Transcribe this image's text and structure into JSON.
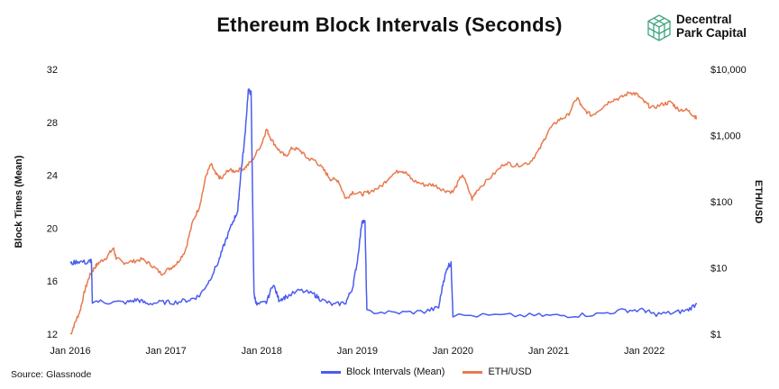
{
  "title": "Ethereum Block Intervals (Seconds)",
  "brand": {
    "line1": "Decentral",
    "line2": "Park Capital",
    "color": "#3fa57f"
  },
  "source": "Source: Glassnode",
  "chart_data": {
    "type": "line",
    "title": "Ethereum Block Intervals (Seconds)",
    "ylabel_left": "Block Times (Mean)",
    "ylabel_right": "ETH/USD",
    "left_axis": {
      "min": 12,
      "max": 32,
      "ticks": [
        "12",
        "16",
        "20",
        "24",
        "28",
        "32"
      ]
    },
    "right_axis": {
      "scale": "log",
      "min": 1,
      "max": 10000,
      "ticks": [
        "$1",
        "$10",
        "$100",
        "$1,000",
        "$10,000"
      ]
    },
    "x_ticks": [
      "Jan 2016",
      "Jan 2017",
      "Jan 2018",
      "Jan 2019",
      "Jan 2020",
      "Jan 2021",
      "Jan 2022"
    ],
    "x_range": [
      2016.0,
      2022.55
    ],
    "grid": false,
    "legend_position": "bottom-center",
    "series": [
      {
        "name": "Block Intervals (Mean)",
        "axis": "left",
        "color": "#4a5cf0",
        "points": [
          [
            2016.0,
            17.3
          ],
          [
            2016.08,
            17.5
          ],
          [
            2016.18,
            17.4
          ],
          [
            2016.22,
            17.6
          ],
          [
            2016.23,
            14.5
          ],
          [
            2016.4,
            14.4
          ],
          [
            2016.6,
            14.4
          ],
          [
            2016.7,
            14.6
          ],
          [
            2016.8,
            14.3
          ],
          [
            2016.95,
            14.4
          ],
          [
            2017.1,
            14.4
          ],
          [
            2017.25,
            14.6
          ],
          [
            2017.35,
            14.9
          ],
          [
            2017.45,
            16.0
          ],
          [
            2017.55,
            17.5
          ],
          [
            2017.62,
            19.0
          ],
          [
            2017.7,
            20.5
          ],
          [
            2017.75,
            21.3
          ],
          [
            2017.78,
            24.0
          ],
          [
            2017.82,
            26.5
          ],
          [
            2017.86,
            30.4
          ],
          [
            2017.89,
            30.2
          ],
          [
            2017.92,
            15.0
          ],
          [
            2017.95,
            14.2
          ],
          [
            2018.05,
            14.4
          ],
          [
            2018.12,
            15.8
          ],
          [
            2018.18,
            14.6
          ],
          [
            2018.25,
            14.8
          ],
          [
            2018.4,
            15.3
          ],
          [
            2018.55,
            15.0
          ],
          [
            2018.62,
            14.6
          ],
          [
            2018.75,
            14.2
          ],
          [
            2018.88,
            14.4
          ],
          [
            2018.95,
            15.5
          ],
          [
            2019.0,
            17.5
          ],
          [
            2019.05,
            20.6
          ],
          [
            2019.08,
            20.4
          ],
          [
            2019.1,
            13.7
          ],
          [
            2019.4,
            13.6
          ],
          [
            2019.7,
            13.7
          ],
          [
            2019.85,
            14.0
          ],
          [
            2019.9,
            16.0
          ],
          [
            2019.95,
            17.2
          ],
          [
            2019.98,
            17.3
          ],
          [
            2020.0,
            13.4
          ],
          [
            2020.5,
            13.4
          ],
          [
            2020.9,
            13.4
          ],
          [
            2021.2,
            13.4
          ],
          [
            2021.5,
            13.5
          ],
          [
            2021.8,
            13.8
          ],
          [
            2022.0,
            13.8
          ],
          [
            2022.1,
            13.5
          ],
          [
            2022.3,
            13.6
          ],
          [
            2022.45,
            13.8
          ],
          [
            2022.55,
            14.3
          ]
        ]
      },
      {
        "name": "ETH/USD",
        "axis": "right",
        "color": "#e87a4f",
        "points": [
          [
            2016.0,
            0.95
          ],
          [
            2016.05,
            1.5
          ],
          [
            2016.1,
            2.2
          ],
          [
            2016.15,
            4.5
          ],
          [
            2016.2,
            7.5
          ],
          [
            2016.25,
            10.0
          ],
          [
            2016.3,
            12.0
          ],
          [
            2016.38,
            14.5
          ],
          [
            2016.45,
            20.0
          ],
          [
            2016.48,
            14.0
          ],
          [
            2016.55,
            12.0
          ],
          [
            2016.65,
            12.5
          ],
          [
            2016.75,
            13.5
          ],
          [
            2016.85,
            11.0
          ],
          [
            2016.95,
            8.2
          ],
          [
            2017.05,
            10.0
          ],
          [
            2017.12,
            12.0
          ],
          [
            2017.2,
            18.0
          ],
          [
            2017.28,
            50.0
          ],
          [
            2017.35,
            85.0
          ],
          [
            2017.42,
            250.0
          ],
          [
            2017.47,
            370.0
          ],
          [
            2017.52,
            260.0
          ],
          [
            2017.58,
            220.0
          ],
          [
            2017.65,
            300.0
          ],
          [
            2017.72,
            290.0
          ],
          [
            2017.82,
            320.0
          ],
          [
            2017.9,
            420.0
          ],
          [
            2018.0,
            750.0
          ],
          [
            2018.05,
            1250.0
          ],
          [
            2018.1,
            880.0
          ],
          [
            2018.18,
            600.0
          ],
          [
            2018.25,
            480.0
          ],
          [
            2018.32,
            650.0
          ],
          [
            2018.4,
            600.0
          ],
          [
            2018.48,
            450.0
          ],
          [
            2018.56,
            420.0
          ],
          [
            2018.65,
            300.0
          ],
          [
            2018.72,
            220.0
          ],
          [
            2018.8,
            210.0
          ],
          [
            2018.88,
            110.0
          ],
          [
            2018.95,
            140.0
          ],
          [
            2019.05,
            130.0
          ],
          [
            2019.12,
            140.0
          ],
          [
            2019.25,
            170.0
          ],
          [
            2019.35,
            250.0
          ],
          [
            2019.45,
            300.0
          ],
          [
            2019.5,
            280.0
          ],
          [
            2019.58,
            210.0
          ],
          [
            2019.7,
            180.0
          ],
          [
            2019.8,
            180.0
          ],
          [
            2019.9,
            150.0
          ],
          [
            2020.0,
            140.0
          ],
          [
            2020.1,
            260.0
          ],
          [
            2020.2,
            110.0
          ],
          [
            2020.25,
            150.0
          ],
          [
            2020.4,
            240.0
          ],
          [
            2020.55,
            390.0
          ],
          [
            2020.65,
            350.0
          ],
          [
            2020.8,
            390.0
          ],
          [
            2020.9,
            600.0
          ],
          [
            2021.0,
            1200.0
          ],
          [
            2021.1,
            1700.0
          ],
          [
            2021.2,
            2000.0
          ],
          [
            2021.3,
            3800.0
          ],
          [
            2021.35,
            2600.0
          ],
          [
            2021.45,
            2000.0
          ],
          [
            2021.55,
            2600.0
          ],
          [
            2021.65,
            3400.0
          ],
          [
            2021.75,
            3700.0
          ],
          [
            2021.85,
            4500.0
          ],
          [
            2021.92,
            4200.0
          ],
          [
            2022.0,
            3200.0
          ],
          [
            2022.08,
            2600.0
          ],
          [
            2022.2,
            3000.0
          ],
          [
            2022.28,
            3200.0
          ],
          [
            2022.35,
            2500.0
          ],
          [
            2022.45,
            2400.0
          ],
          [
            2022.52,
            2000.0
          ],
          [
            2022.55,
            1800.0
          ]
        ]
      }
    ]
  }
}
